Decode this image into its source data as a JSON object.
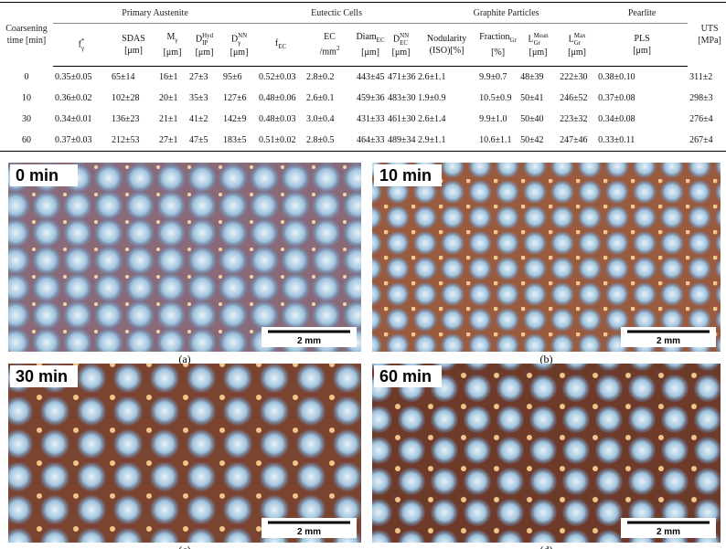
{
  "table": {
    "groups": [
      "Primary Austenite",
      "Eutectic Cells",
      "Graphite Particles",
      "Pearlite"
    ],
    "columns": [
      {
        "main": "Coarsening time [min]"
      },
      {
        "main": "f",
        "sub": "γ",
        "sup": "*"
      },
      {
        "main": "SDAS",
        "unit": "[μm]"
      },
      {
        "main": "M",
        "sub": "γ",
        "unit": "[μm]"
      },
      {
        "main": "D",
        "sub": "IP",
        "sup": "Hyd",
        "unit": "[μm]"
      },
      {
        "main": "D",
        "sub": "γ",
        "sup": "NN",
        "unit": "[μm]"
      },
      {
        "main": "f",
        "sub": "EC"
      },
      {
        "main": "EC",
        "unit": "/mm",
        "unit_sup": "2"
      },
      {
        "main": "Diam",
        "sub": "EC",
        "unit": "[μm]"
      },
      {
        "main": "D",
        "sub": "EC",
        "sup": "NN",
        "unit": "[μm]"
      },
      {
        "main": "Nodularity",
        "unit": "(ISO)[%]"
      },
      {
        "main": "Fraction",
        "sub": "Gr",
        "unit": "[%]"
      },
      {
        "main": "L",
        "sub": "Gr",
        "sup": "Mean",
        "unit": "[μm]"
      },
      {
        "main": "L",
        "sub": "Gr",
        "sup": "Max",
        "unit": "[μm]"
      },
      {
        "main": "PLS",
        "unit": "[μm]"
      },
      {
        "main": "UTS",
        "unit": "[MPa]"
      }
    ],
    "rows": [
      [
        "0",
        "0.35±0.05",
        "65±14",
        "16±1",
        "27±3",
        "95±6",
        "0.52±0.03",
        "2.8±0.2",
        "443±45",
        "471±36",
        "2.6±1.1",
        "9.9±0.7",
        "48±39",
        "222±30",
        "0.38±0.10",
        "311±2"
      ],
      [
        "10",
        "0.36±0.02",
        "102±28",
        "20±1",
        "35±3",
        "127±6",
        "0.48±0.06",
        "2.6±0.1",
        "459±36",
        "483±30",
        "1.9±0.9",
        "10.5±0.9",
        "50±41",
        "246±52",
        "0.37±0.08",
        "298±3"
      ],
      [
        "30",
        "0.34±0.01",
        "136±23",
        "21±1",
        "41±2",
        "142±9",
        "0.48±0.03",
        "3.0±0.4",
        "431±33",
        "461±30",
        "2.6±1.4",
        "9.9±1.0",
        "50±40",
        "223±32",
        "0.34±0.08",
        "276±4"
      ],
      [
        "60",
        "0.37±0.03",
        "212±53",
        "27±1",
        "47±5",
        "183±5",
        "0.51±0.02",
        "2.8±0.5",
        "464±33",
        "489±34",
        "2.9±1.1",
        "10.6±1.1",
        "50±42",
        "247±46",
        "0.33±0.11",
        "267±4"
      ]
    ]
  },
  "figures": [
    {
      "label": "0 min",
      "scale": "2 mm",
      "caption": "(a)"
    },
    {
      "label": "10 min",
      "scale": "2 mm",
      "caption": "(b)"
    },
    {
      "label": "30 min",
      "scale": "2 mm",
      "caption": "(c)"
    },
    {
      "label": "60 min",
      "scale": "2 mm",
      "caption": "(d)"
    }
  ]
}
